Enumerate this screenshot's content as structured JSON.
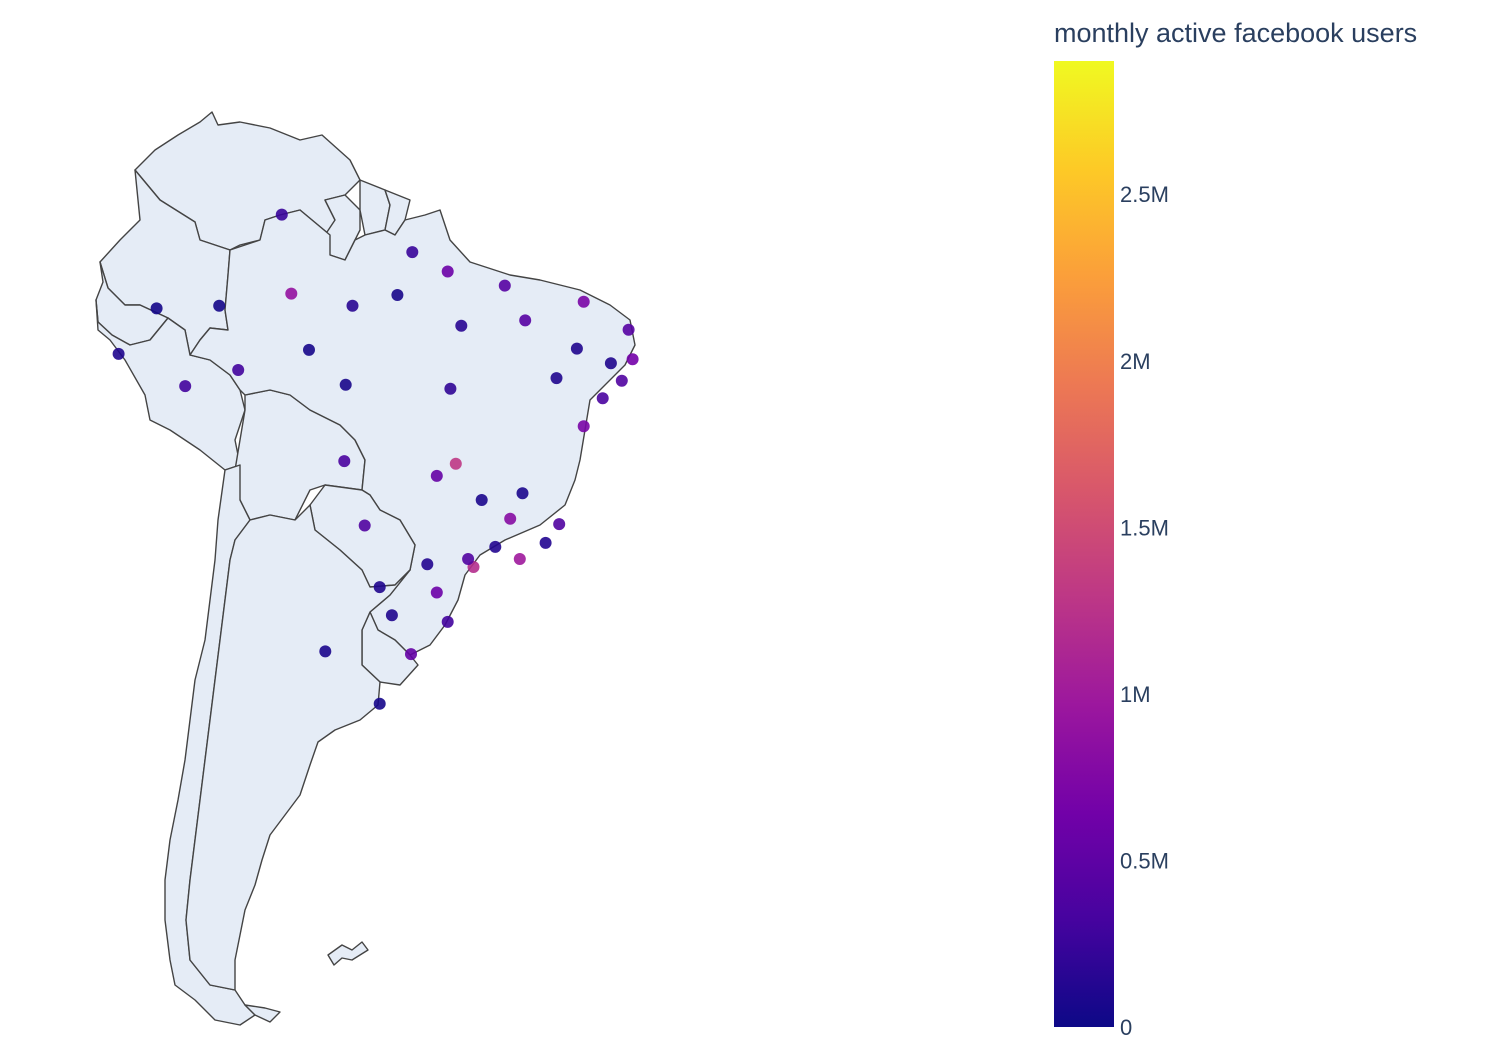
{
  "colorbar": {
    "title": "monthly active facebook users",
    "min": 0,
    "max": 2900000,
    "ticks": [
      {
        "value": 0,
        "label": "0"
      },
      {
        "value": 500000,
        "label": "0.5M"
      },
      {
        "value": 1000000,
        "label": "1M"
      },
      {
        "value": 1500000,
        "label": "1.5M"
      },
      {
        "value": 2000000,
        "label": "2M"
      },
      {
        "value": 2500000,
        "label": "2.5M"
      }
    ],
    "colorscale": [
      "#0d0887",
      "#46039f",
      "#7201a8",
      "#9c179e",
      "#bd3786",
      "#d8576b",
      "#ed7953",
      "#fb9f3a",
      "#fdca26",
      "#f0f921"
    ]
  },
  "chart_data": {
    "type": "scatter",
    "geo_scope": "south america",
    "projection": "natural earth",
    "marker_color_variable": "monthly active facebook users",
    "points": [
      {
        "lon": -60.0,
        "lat": -3.1,
        "value": 900000
      },
      {
        "lon": -47.9,
        "lat": -15.8,
        "value": 1300000
      },
      {
        "lon": -46.6,
        "lat": -23.5,
        "value": 1200000
      },
      {
        "lon": -43.2,
        "lat": -22.9,
        "value": 1000000
      },
      {
        "lon": -38.5,
        "lat": -13.0,
        "value": 700000
      },
      {
        "lon": -38.5,
        "lat": -3.7,
        "value": 700000
      },
      {
        "lon": -34.9,
        "lat": -8.0,
        "value": 650000
      },
      {
        "lon": -49.3,
        "lat": -25.4,
        "value": 600000
      },
      {
        "lon": -43.9,
        "lat": -19.9,
        "value": 800000
      },
      {
        "lon": -51.2,
        "lat": -30.0,
        "value": 550000
      },
      {
        "lon": -48.5,
        "lat": -1.45,
        "value": 600000
      },
      {
        "lon": -44.3,
        "lat": -2.5,
        "value": 450000
      },
      {
        "lon": -49.3,
        "lat": -16.7,
        "value": 550000
      },
      {
        "lon": -35.2,
        "lat": -5.8,
        "value": 450000
      },
      {
        "lon": -56.1,
        "lat": -15.6,
        "value": 350000
      },
      {
        "lon": -54.6,
        "lat": -20.4,
        "value": 400000
      },
      {
        "lon": -60.7,
        "lat": 2.8,
        "value": 250000
      },
      {
        "lon": -51.1,
        "lat": 0.0,
        "value": 250000
      },
      {
        "lon": -67.8,
        "lat": -10.0,
        "value": 300000
      },
      {
        "lon": -63.9,
        "lat": -8.8,
        "value": 300000
      },
      {
        "lon": -42.8,
        "lat": -5.1,
        "value": 450000
      },
      {
        "lon": -35.7,
        "lat": -9.6,
        "value": 400000
      },
      {
        "lon": -37.1,
        "lat": -10.9,
        "value": 350000
      },
      {
        "lon": -40.3,
        "lat": -20.3,
        "value": 400000
      },
      {
        "lon": -48.5,
        "lat": -27.6,
        "value": 300000
      },
      {
        "lon": -55.5,
        "lat": -4.0,
        "value": 150000
      },
      {
        "lon": -72.7,
        "lat": -7.6,
        "value": 100000
      },
      {
        "lon": -47.5,
        "lat": -5.5,
        "value": 150000
      },
      {
        "lon": -48.3,
        "lat": -10.2,
        "value": 200000
      },
      {
        "lon": -45.0,
        "lat": -22.0,
        "value": 120000
      },
      {
        "lon": -47.0,
        "lat": -22.9,
        "value": 400000
      },
      {
        "lon": -41.3,
        "lat": -21.7,
        "value": 120000
      },
      {
        "lon": -50.0,
        "lat": -23.3,
        "value": 120000
      },
      {
        "lon": -53.5,
        "lat": -25.0,
        "value": 100000
      },
      {
        "lon": -52.6,
        "lat": -27.1,
        "value": 100000
      },
      {
        "lon": -39.0,
        "lat": -7.2,
        "value": 100000
      },
      {
        "lon": -36.5,
        "lat": -8.3,
        "value": 100000
      },
      {
        "lon": -40.5,
        "lat": -9.4,
        "value": 100000
      },
      {
        "lon": -43.0,
        "lat": -18.0,
        "value": 80000
      },
      {
        "lon": -46.0,
        "lat": -18.5,
        "value": 80000
      },
      {
        "lon": -58.7,
        "lat": -7.3,
        "value": 50000
      },
      {
        "lon": -52.2,
        "lat": -3.2,
        "value": 60000
      },
      {
        "lon": -65.3,
        "lat": -4.0,
        "value": 40000
      },
      {
        "lon": -69.9,
        "lat": -4.2,
        "value": 40000
      },
      {
        "lon": -56.0,
        "lat": -9.9,
        "value": 60000
      },
      {
        "lon": -57.5,
        "lat": -29.8,
        "value": 80000
      },
      {
        "lon": -53.5,
        "lat": -33.7,
        "value": 50000
      }
    ]
  }
}
